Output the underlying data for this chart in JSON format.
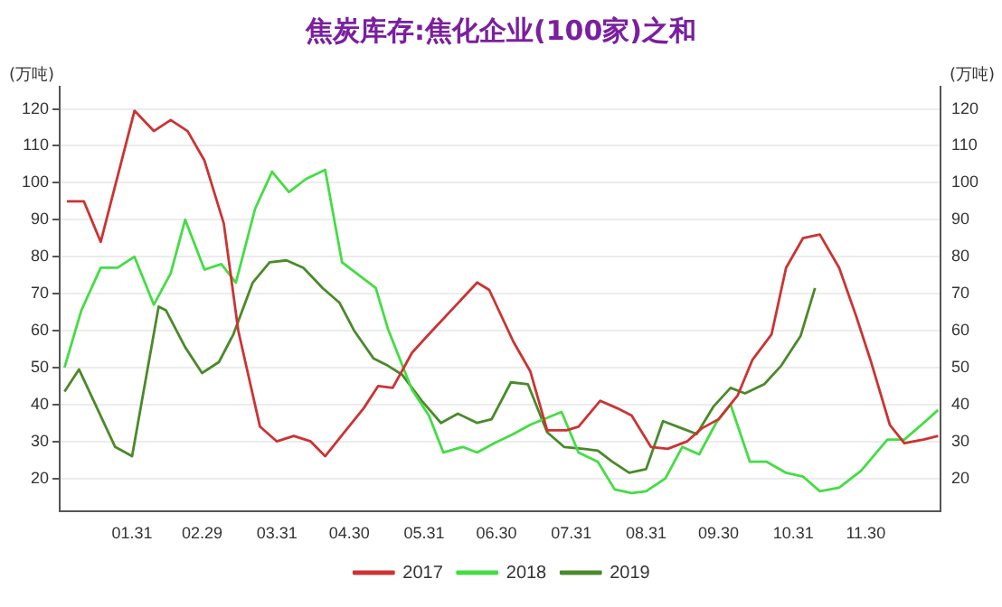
{
  "chart_data": {
    "type": "line",
    "title": "焦炭库存:焦化企业(100家)之和",
    "ylabel": "(万吨)",
    "y2label": "(万吨)",
    "xlim": [
      "--01-01",
      "--12-31"
    ],
    "xticks": [
      {
        "value": "--01-31",
        "label": "01.31"
      },
      {
        "value": "--02-29",
        "label": "02.29"
      },
      {
        "value": "--03-31",
        "label": "03.31"
      },
      {
        "value": "--04-30",
        "label": "04.30"
      },
      {
        "value": "--05-31",
        "label": "05.31"
      },
      {
        "value": "--06-30",
        "label": "06.30"
      },
      {
        "value": "--07-31",
        "label": "07.31"
      },
      {
        "value": "--08-31",
        "label": "08.31"
      },
      {
        "value": "--09-30",
        "label": "09.30"
      },
      {
        "value": "--10-31",
        "label": "10.31"
      },
      {
        "value": "--11-30",
        "label": "11.30"
      }
    ],
    "ylim": [
      11,
      126
    ],
    "yticks": [
      20,
      30,
      40,
      50,
      60,
      70,
      80,
      90,
      100,
      110,
      120
    ],
    "y2lim": [
      11,
      126
    ],
    "y2ticks": [
      20,
      30,
      40,
      50,
      60,
      70,
      80,
      90,
      100,
      110,
      120
    ],
    "grid": "y",
    "legend": "bottom",
    "marker": "none",
    "line_style": "solid",
    "series": [
      {
        "name": "2017",
        "color": "#cc3333",
        "x": [
          "--01-04",
          "--01-11",
          "--01-18",
          "--02-01",
          "--02-09",
          "--02-16",
          "--02-23",
          "--03-01",
          "--03-09",
          "--03-15",
          "--03-24",
          "--03-31",
          "--04-07",
          "--04-14",
          "--04-20",
          "--04-28",
          "--05-06",
          "--05-12",
          "--05-18",
          "--05-26",
          "--06-02",
          "--06-22",
          "--06-27",
          "--07-07",
          "--07-14",
          "--07-21",
          "--07-29",
          "--08-03",
          "--08-12",
          "--08-19",
          "--08-25",
          "--09-02",
          "--09-09",
          "--09-17",
          "--09-23",
          "--09-30",
          "--10-08",
          "--10-14",
          "--10-22",
          "--10-28",
          "--11-04",
          "--11-11",
          "--11-19",
          "--11-26",
          "--12-02",
          "--12-10",
          "--12-16",
          "--12-24",
          "--12-30"
        ],
        "values": [
          95,
          95,
          84,
          119.5,
          114,
          117,
          114,
          106,
          89,
          60,
          34,
          30,
          31.5,
          30,
          26,
          32.5,
          39,
          45,
          44.5,
          54,
          59,
          73,
          71,
          57,
          49,
          33,
          33,
          34,
          41,
          39,
          37,
          28.5,
          28,
          30,
          33.5,
          36,
          42.5,
          52,
          59,
          77,
          85,
          86,
          77,
          64,
          52,
          34.5,
          29.5,
          30.5,
          31.5
        ]
      },
      {
        "name": "2018",
        "color": "#44dd44",
        "x": [
          "--01-03",
          "--01-10",
          "--01-18",
          "--01-25",
          "--02-01",
          "--02-09",
          "--02-16",
          "--02-22",
          "--03-01",
          "--03-08",
          "--03-14",
          "--03-22",
          "--03-29",
          "--04-05",
          "--04-12",
          "--04-20",
          "--04-27",
          "--05-04",
          "--05-11",
          "--05-16",
          "--05-26",
          "--06-02",
          "--06-08",
          "--06-16",
          "--06-22",
          "--06-29",
          "--07-07",
          "--07-14",
          "--07-27",
          "--08-03",
          "--08-11",
          "--08-18",
          "--08-25",
          "--08-31",
          "--09-08",
          "--09-15",
          "--09-22",
          "--09-29",
          "--10-05",
          "--10-13",
          "--10-20",
          "--10-28",
          "--11-04",
          "--11-11",
          "--11-19",
          "--11-28",
          "--12-09",
          "--12-16",
          "--12-24",
          "--12-30"
        ],
        "values": [
          50,
          65.5,
          77,
          77,
          80,
          67,
          75.5,
          90,
          76.5,
          78,
          73,
          93,
          103,
          97.5,
          101,
          103.5,
          78.5,
          75,
          71.5,
          60.5,
          44,
          37,
          27,
          28.5,
          27,
          29.5,
          32,
          34.5,
          38,
          27,
          24.5,
          17,
          16,
          16.5,
          20,
          28.5,
          26.5,
          35,
          40,
          24.5,
          24.5,
          21.5,
          20.5,
          16.5,
          17.5,
          22,
          30.5,
          30.5,
          35,
          38.5
        ]
      },
      {
        "name": "2019",
        "color": "#4a8a2a",
        "x": [
          "--01-03",
          "--01-09",
          "--01-24",
          "--01-31",
          "--02-11",
          "--02-14",
          "--02-22",
          "--02-29",
          "--03-07",
          "--03-13",
          "--03-21",
          "--03-28",
          "--04-04",
          "--04-11",
          "--04-19",
          "--04-26",
          "--05-02",
          "--05-10",
          "--05-16",
          "--05-22",
          "--05-30",
          "--06-07",
          "--06-14",
          "--06-22",
          "--06-28",
          "--07-06",
          "--07-13",
          "--07-21",
          "--07-28",
          "--08-05",
          "--08-11",
          "--08-17",
          "--08-24",
          "--08-31",
          "--09-07",
          "--09-15",
          "--09-21",
          "--09-28",
          "--10-05",
          "--10-11",
          "--10-19",
          "--10-26",
          "--11-03",
          "--11-09"
        ],
        "values": [
          43.5,
          49.5,
          28.5,
          26,
          66.5,
          65.5,
          55.5,
          48.5,
          51.5,
          59,
          73,
          78.5,
          79,
          77,
          71.5,
          67.5,
          60,
          52.5,
          50.5,
          48,
          41,
          35,
          37.5,
          35,
          36,
          46,
          45.5,
          32.5,
          28.5,
          28,
          27.5,
          24.5,
          21.5,
          22.5,
          35.5,
          33.5,
          32,
          39.5,
          44.5,
          43,
          45.5,
          50.5,
          58.5,
          71.5
        ]
      }
    ]
  }
}
